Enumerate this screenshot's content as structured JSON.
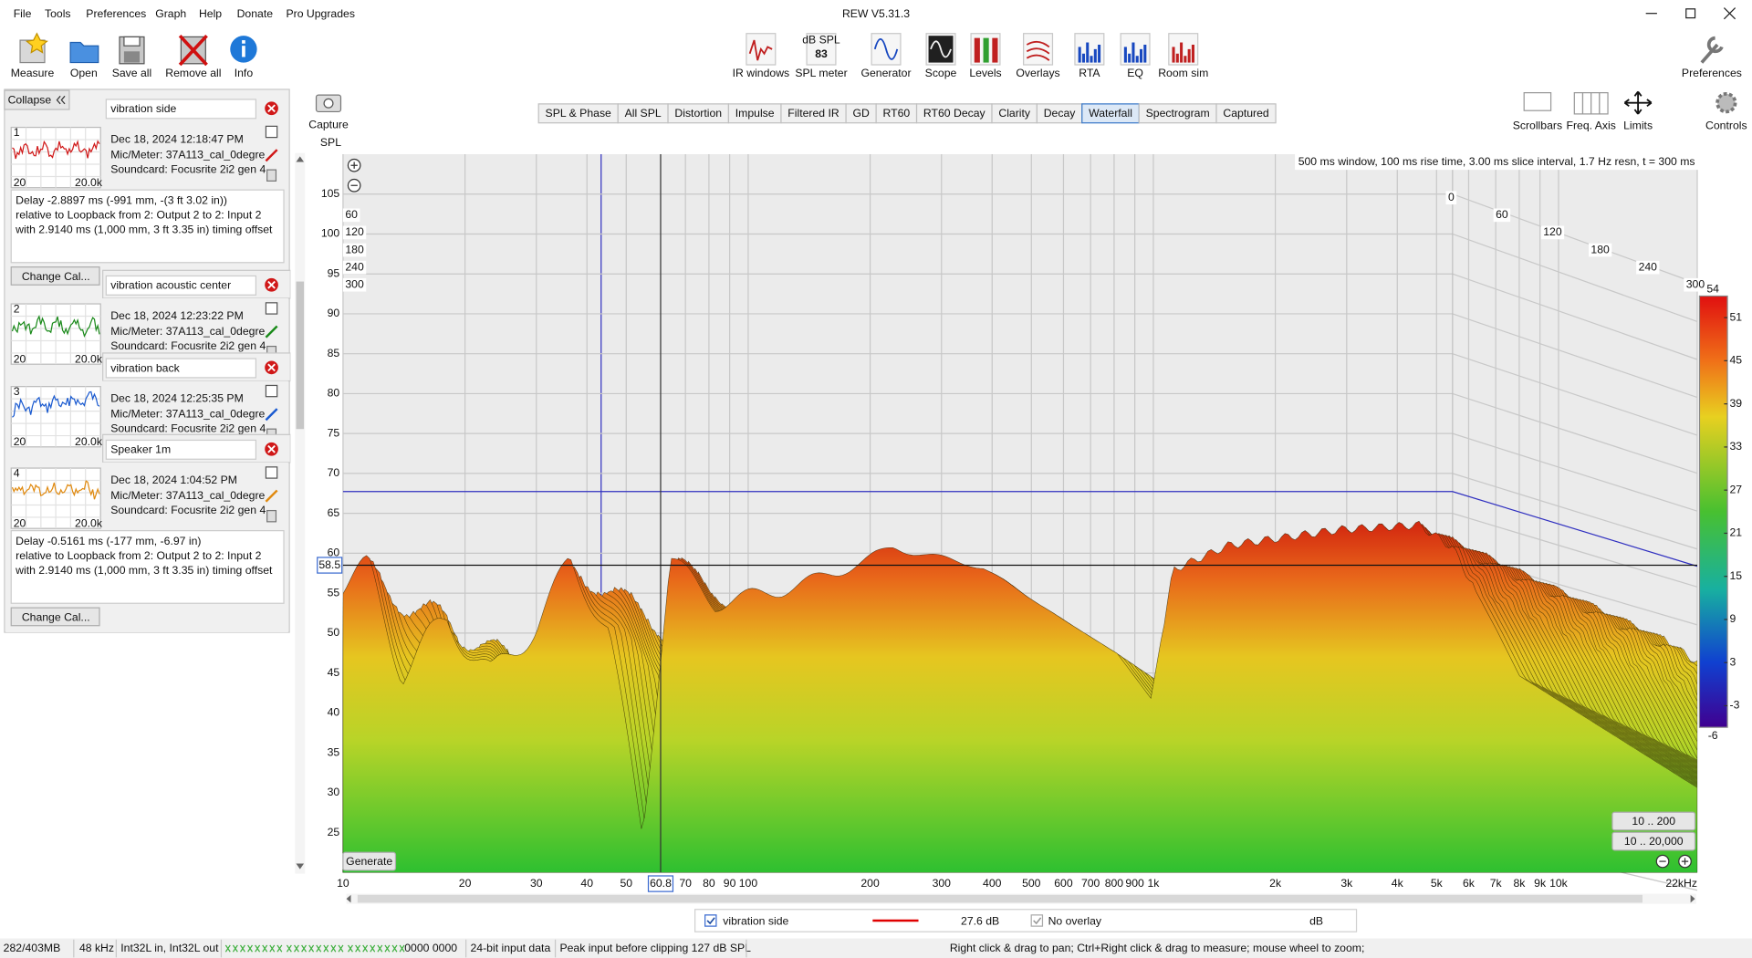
{
  "window": {
    "title": "REW V5.31.3"
  },
  "menu": [
    "File",
    "Tools",
    "Preferences",
    "Graph",
    "Help",
    "Donate",
    "Pro Upgrades"
  ],
  "toolbar": {
    "left": [
      "Measure",
      "Open",
      "Save all",
      "Remove all",
      "Info"
    ],
    "center": [
      "IR windows",
      "SPL meter",
      "Generator",
      "Scope",
      "Levels",
      "Overlays",
      "RTA",
      "EQ",
      "Room sim"
    ],
    "right": [
      "Preferences"
    ]
  },
  "spl_meter_icon": {
    "unit": "dB SPL",
    "reading": "83"
  },
  "panel": {
    "collapse": "Collapse",
    "measurements": [
      {
        "number": "1",
        "name": "vibration side",
        "color": "#d01818",
        "date": "Dec 18, 2024 12:18:47 PM",
        "mic": "Mic/Meter: 37A113_cal_0degre",
        "soundcard": "Soundcard: Focusrite 2i2 gen 4",
        "thumb_min": "20",
        "thumb_max": "20.0k",
        "delay": [
          "Delay -2.8897 ms (-991 mm, -(3 ft 3.02 in))",
          " relative to Loopback from 2: Output 2 to 2: Input 2",
          "with 2.9140 ms (1,000 mm, 3 ft 3.35 in) timing offset"
        ],
        "button": "Change Cal..."
      },
      {
        "number": "2",
        "name": "vibration acoustic center",
        "color": "#1a8a1a",
        "date": "Dec 18, 2024 12:23:22 PM",
        "mic": "Mic/Meter: 37A113_cal_0degre",
        "soundcard": "Soundcard: Focusrite 2i2 gen 4",
        "thumb_min": "20",
        "thumb_max": "20.0k"
      },
      {
        "number": "3",
        "name": "vibration back",
        "color": "#1a5ad0",
        "date": "Dec 18, 2024 12:25:35 PM",
        "mic": "Mic/Meter: 37A113_cal_0degre",
        "soundcard": "Soundcard: Focusrite 2i2 gen 4",
        "thumb_min": "20",
        "thumb_max": "20.0k"
      },
      {
        "number": "4",
        "name": "Speaker 1m",
        "color": "#e08a10",
        "date": "Dec 18, 2024 1:04:52 PM",
        "mic": "Mic/Meter: 37A113_cal_0degre",
        "soundcard": "Soundcard: Focusrite 2i2 gen 4",
        "thumb_min": "20",
        "thumb_max": "20.0k",
        "delay": [
          "Delay -0.5161 ms (-177 mm, -6.97 in)",
          " relative to Loopback from 2: Output 2 to 2: Input 2",
          "with 2.9140 ms (1,000 mm, 3 ft 3.35 in) timing offset"
        ],
        "button": "Change Cal..."
      }
    ]
  },
  "capture": "Capture",
  "tabs": [
    "SPL & Phase",
    "All SPL",
    "Distortion",
    "Impulse",
    "Filtered IR",
    "GD",
    "RT60",
    "RT60 Decay",
    "Clarity",
    "Decay",
    "Waterfall",
    "Spectrogram",
    "Captured"
  ],
  "active_tab": 10,
  "graph_tools": [
    "Scrollbars",
    "Freq. Axis",
    "Limits",
    "Controls"
  ],
  "graph": {
    "y_label": "SPL",
    "ylim": [
      20,
      110
    ],
    "yticks": [
      105,
      100,
      95,
      90,
      85,
      80,
      75,
      70,
      65,
      60,
      55,
      50,
      45,
      40,
      35,
      30,
      25
    ],
    "xlim": [
      10,
      22000
    ],
    "log_x": true,
    "xticks": [
      10,
      20,
      30,
      40,
      50,
      70,
      80,
      90,
      100,
      200,
      300,
      400,
      500,
      600,
      700,
      800,
      900,
      {
        "value": 1000,
        "label": "1k"
      },
      {
        "value": 2000,
        "label": "2k"
      },
      {
        "value": 3000,
        "label": "3k"
      },
      {
        "value": 4000,
        "label": "4k"
      },
      {
        "value": 5000,
        "label": "5k"
      },
      {
        "value": 6000,
        "label": "6k"
      },
      {
        "value": 7000,
        "label": "7k"
      },
      {
        "value": 8000,
        "label": "8k"
      },
      {
        "value": 9000,
        "label": "9k"
      },
      {
        "value": 10000,
        "label": "10k"
      },
      {
        "value": 22000,
        "label": "22kHz"
      }
    ],
    "grid": true,
    "cursor": {
      "x": 60.8,
      "y": 58.5
    },
    "info": "500 ms window, 100 ms rise time, 3.00 ms slice interval, 1.7 Hz resn, t = 300 ms",
    "time_ticks": [
      0,
      60,
      120,
      180,
      240,
      300
    ],
    "colorbar": {
      "lim": [
        -6,
        54
      ],
      "ticks": [
        54,
        51,
        45,
        39,
        33,
        27,
        21,
        15,
        9,
        3,
        -3,
        -6
      ]
    },
    "buttons": {
      "generate": "Generate",
      "range_low": "10 .. 200",
      "range_full": "10 .. 20,000"
    }
  },
  "legend": {
    "name": "vibration side",
    "color": "#e00000",
    "value": "27.6 dB",
    "overlay": "No overlay",
    "overlay_unit": "dB"
  },
  "status": [
    "282/403MB",
    "48 kHz",
    "Int32L in, Int32L out",
    "0000 0000",
    "24-bit input data",
    "Peak input before clipping 127 dB SPL",
    "Right click & drag to pan; Ctrl+Right click & drag to measure; mouse wheel to zoom;"
  ]
}
